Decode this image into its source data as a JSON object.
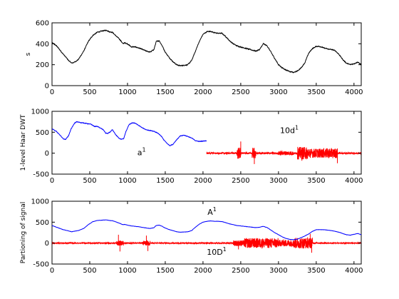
{
  "chart_data": [
    {
      "type": "line",
      "ylabel": "s",
      "xlim": [
        0,
        4096
      ],
      "ylim": [
        0,
        600
      ],
      "xticks": [
        0,
        500,
        1000,
        1500,
        2000,
        2500,
        3000,
        3500,
        4000
      ],
      "yticks": [
        0,
        200,
        400,
        600
      ],
      "series": [
        {
          "color": "#000000",
          "style": "smooth",
          "noise": 6,
          "points": [
            [
              0,
              410
            ],
            [
              60,
              380
            ],
            [
              150,
              300
            ],
            [
              220,
              240
            ],
            [
              260,
              215
            ],
            [
              300,
              225
            ],
            [
              350,
              250
            ],
            [
              420,
              330
            ],
            [
              480,
              420
            ],
            [
              540,
              480
            ],
            [
              600,
              510
            ],
            [
              680,
              525
            ],
            [
              720,
              530
            ],
            [
              760,
              515
            ],
            [
              800,
              510
            ],
            [
              840,
              480
            ],
            [
              900,
              440
            ],
            [
              940,
              400
            ],
            [
              960,
              410
            ],
            [
              1000,
              400
            ],
            [
              1050,
              370
            ],
            [
              1100,
              370
            ],
            [
              1150,
              360
            ],
            [
              1200,
              345
            ],
            [
              1250,
              330
            ],
            [
              1300,
              320
            ],
            [
              1350,
              345
            ],
            [
              1380,
              420
            ],
            [
              1420,
              430
            ],
            [
              1460,
              380
            ],
            [
              1500,
              320
            ],
            [
              1540,
              280
            ],
            [
              1600,
              230
            ],
            [
              1650,
              200
            ],
            [
              1700,
              190
            ],
            [
              1750,
              195
            ],
            [
              1800,
              200
            ],
            [
              1850,
              240
            ],
            [
              1900,
              330
            ],
            [
              1950,
              420
            ],
            [
              2000,
              490
            ],
            [
              2050,
              515
            ],
            [
              2100,
              520
            ],
            [
              2150,
              505
            ],
            [
              2200,
              500
            ],
            [
              2250,
              500
            ],
            [
              2300,
              470
            ],
            [
              2350,
              430
            ],
            [
              2400,
              400
            ],
            [
              2450,
              380
            ],
            [
              2500,
              370
            ],
            [
              2550,
              360
            ],
            [
              2600,
              350
            ],
            [
              2650,
              340
            ],
            [
              2700,
              330
            ],
            [
              2750,
              345
            ],
            [
              2800,
              400
            ],
            [
              2850,
              380
            ],
            [
              2900,
              320
            ],
            [
              2950,
              260
            ],
            [
              3000,
              200
            ],
            [
              3050,
              170
            ],
            [
              3100,
              150
            ],
            [
              3150,
              135
            ],
            [
              3200,
              125
            ],
            [
              3250,
              140
            ],
            [
              3300,
              170
            ],
            [
              3350,
              220
            ],
            [
              3400,
              310
            ],
            [
              3450,
              355
            ],
            [
              3500,
              375
            ],
            [
              3550,
              375
            ],
            [
              3600,
              360
            ],
            [
              3650,
              350
            ],
            [
              3700,
              345
            ],
            [
              3750,
              335
            ],
            [
              3800,
              300
            ],
            [
              3850,
              250
            ],
            [
              3900,
              215
            ],
            [
              3950,
              200
            ],
            [
              4000,
              210
            ],
            [
              4050,
              225
            ],
            [
              4096,
              200
            ]
          ]
        }
      ]
    },
    {
      "type": "line",
      "ylabel": "1-level Haar DWT",
      "xlim": [
        0,
        4096
      ],
      "ylim": [
        -500,
        1000
      ],
      "xticks": [
        0,
        500,
        1000,
        1500,
        2000,
        2500,
        3000,
        3500,
        4000
      ],
      "yticks": [
        -500,
        0,
        500,
        1000
      ],
      "annotations": [
        {
          "text": "a",
          "sup": "1",
          "x": 1130,
          "y": -50
        },
        {
          "text": "10d",
          "sup": "1",
          "x": 3020,
          "y": 480
        }
      ],
      "series": [
        {
          "color": "#0000ff",
          "style": "smooth",
          "noise": 10,
          "points": [
            [
              0,
              580
            ],
            [
              60,
              520
            ],
            [
              110,
              420
            ],
            [
              150,
              340
            ],
            [
              180,
              330
            ],
            [
              220,
              420
            ],
            [
              250,
              570
            ],
            [
              300,
              720
            ],
            [
              330,
              750
            ],
            [
              380,
              730
            ],
            [
              430,
              720
            ],
            [
              480,
              700
            ],
            [
              520,
              690
            ],
            [
              560,
              640
            ],
            [
              600,
              640
            ],
            [
              640,
              600
            ],
            [
              680,
              560
            ],
            [
              710,
              480
            ],
            [
              740,
              470
            ],
            [
              780,
              520
            ],
            [
              800,
              560
            ],
            [
              840,
              450
            ],
            [
              880,
              370
            ],
            [
              920,
              330
            ],
            [
              950,
              350
            ],
            [
              980,
              520
            ],
            [
              1020,
              680
            ],
            [
              1060,
              720
            ],
            [
              1100,
              720
            ],
            [
              1150,
              660
            ],
            [
              1200,
              600
            ],
            [
              1250,
              560
            ],
            [
              1300,
              540
            ],
            [
              1350,
              520
            ],
            [
              1400,
              480
            ],
            [
              1450,
              400
            ],
            [
              1480,
              320
            ],
            [
              1520,
              240
            ],
            [
              1560,
              180
            ],
            [
              1600,
              210
            ],
            [
              1650,
              320
            ],
            [
              1700,
              410
            ],
            [
              1750,
              430
            ],
            [
              1800,
              400
            ],
            [
              1850,
              360
            ],
            [
              1900,
              300
            ],
            [
              1950,
              280
            ],
            [
              2000,
              290
            ],
            [
              2048,
              300
            ]
          ]
        },
        {
          "color": "#ff0000",
          "style": "noise",
          "x_range": [
            2048,
            4096
          ],
          "base": 0,
          "noise": 18,
          "bursts": [
            {
              "x": [
                2450,
                2500
              ],
              "amp": 140
            },
            {
              "x": [
                2650,
                2700
              ],
              "amp": 130
            },
            {
              "x": [
                3000,
                3200
              ],
              "amp": 50
            },
            {
              "x": [
                3250,
                3400
              ],
              "amp": 150
            },
            {
              "x": [
                3400,
                3600
              ],
              "amp": 110
            },
            {
              "x": [
                3600,
                3780
              ],
              "amp": 120
            }
          ],
          "spikes": [
            [
              2500,
              280
            ],
            [
              2680,
              -260
            ],
            [
              3310,
              -180
            ],
            [
              3780,
              -240
            ]
          ]
        }
      ]
    },
    {
      "type": "line",
      "ylabel": "Partioning of signal",
      "xlim": [
        0,
        4096
      ],
      "ylim": [
        -500,
        1000
      ],
      "xticks": [
        0,
        500,
        1000,
        1500,
        2000,
        2500,
        3000,
        3500,
        4000
      ],
      "yticks": [
        -500,
        0,
        500,
        1000
      ],
      "annotations": [
        {
          "text": "A",
          "sup": "1",
          "x": 2060,
          "y": 680
        },
        {
          "text": "10D",
          "sup": "1",
          "x": 2050,
          "y": -280
        }
      ],
      "series": [
        {
          "color": "#ff0000",
          "style": "noise",
          "x_range": [
            0,
            4096
          ],
          "base": 0,
          "noise": 10,
          "bursts": [
            {
              "x": [
                850,
                950
              ],
              "amp": 60
            },
            {
              "x": [
                1200,
                1300
              ],
              "amp": 60
            },
            {
              "x": [
                2400,
                2550
              ],
              "amp": 70
            },
            {
              "x": [
                2550,
                3000
              ],
              "amp": 120
            },
            {
              "x": [
                3000,
                3200
              ],
              "amp": 80
            },
            {
              "x": [
                3200,
                3450
              ],
              "amp": 130
            }
          ],
          "spikes": [
            [
              880,
              200
            ],
            [
              900,
              -200
            ],
            [
              1250,
              180
            ],
            [
              1270,
              -190
            ],
            [
              2470,
              -150
            ],
            [
              3420,
              220
            ],
            [
              3440,
              -230
            ]
          ]
        },
        {
          "color": "#0000ff",
          "style": "smooth",
          "noise": 4,
          "points": [
            [
              0,
              420
            ],
            [
              60,
              380
            ],
            [
              150,
              320
            ],
            [
              220,
              290
            ],
            [
              260,
              270
            ],
            [
              300,
              285
            ],
            [
              350,
              300
            ],
            [
              420,
              350
            ],
            [
              480,
              440
            ],
            [
              540,
              510
            ],
            [
              600,
              540
            ],
            [
              680,
              550
            ],
            [
              720,
              555
            ],
            [
              760,
              540
            ],
            [
              800,
              535
            ],
            [
              840,
              510
            ],
            [
              900,
              470
            ],
            [
              940,
              440
            ],
            [
              960,
              445
            ],
            [
              1000,
              430
            ],
            [
              1050,
              410
            ],
            [
              1100,
              400
            ],
            [
              1150,
              390
            ],
            [
              1200,
              375
            ],
            [
              1250,
              360
            ],
            [
              1300,
              350
            ],
            [
              1350,
              370
            ],
            [
              1380,
              420
            ],
            [
              1420,
              430
            ],
            [
              1460,
              400
            ],
            [
              1500,
              360
            ],
            [
              1540,
              330
            ],
            [
              1600,
              300
            ],
            [
              1650,
              270
            ],
            [
              1700,
              260
            ],
            [
              1750,
              265
            ],
            [
              1800,
              270
            ],
            [
              1850,
              300
            ],
            [
              1900,
              380
            ],
            [
              1950,
              450
            ],
            [
              2000,
              500
            ],
            [
              2050,
              520
            ],
            [
              2100,
              530
            ],
            [
              2150,
              520
            ],
            [
              2200,
              520
            ],
            [
              2250,
              515
            ],
            [
              2300,
              490
            ],
            [
              2350,
              460
            ],
            [
              2400,
              440
            ],
            [
              2450,
              420
            ],
            [
              2500,
              410
            ],
            [
              2550,
              400
            ],
            [
              2600,
              390
            ],
            [
              2650,
              380
            ],
            [
              2700,
              370
            ],
            [
              2750,
              380
            ],
            [
              2800,
              400
            ],
            [
              2850,
              370
            ],
            [
              2900,
              310
            ],
            [
              2950,
              250
            ],
            [
              3000,
              200
            ],
            [
              3050,
              150
            ],
            [
              3100,
              110
            ],
            [
              3150,
              90
            ],
            [
              3200,
              80
            ],
            [
              3250,
              95
            ],
            [
              3300,
              130
            ],
            [
              3350,
              170
            ],
            [
              3400,
              220
            ],
            [
              3450,
              280
            ],
            [
              3500,
              320
            ],
            [
              3600,
              320
            ],
            [
              3650,
              310
            ],
            [
              3700,
              300
            ],
            [
              3750,
              280
            ],
            [
              3800,
              260
            ],
            [
              3850,
              230
            ],
            [
              3900,
              200
            ],
            [
              3950,
              190
            ],
            [
              4000,
              210
            ],
            [
              4050,
              230
            ],
            [
              4096,
              200
            ]
          ]
        }
      ]
    }
  ]
}
